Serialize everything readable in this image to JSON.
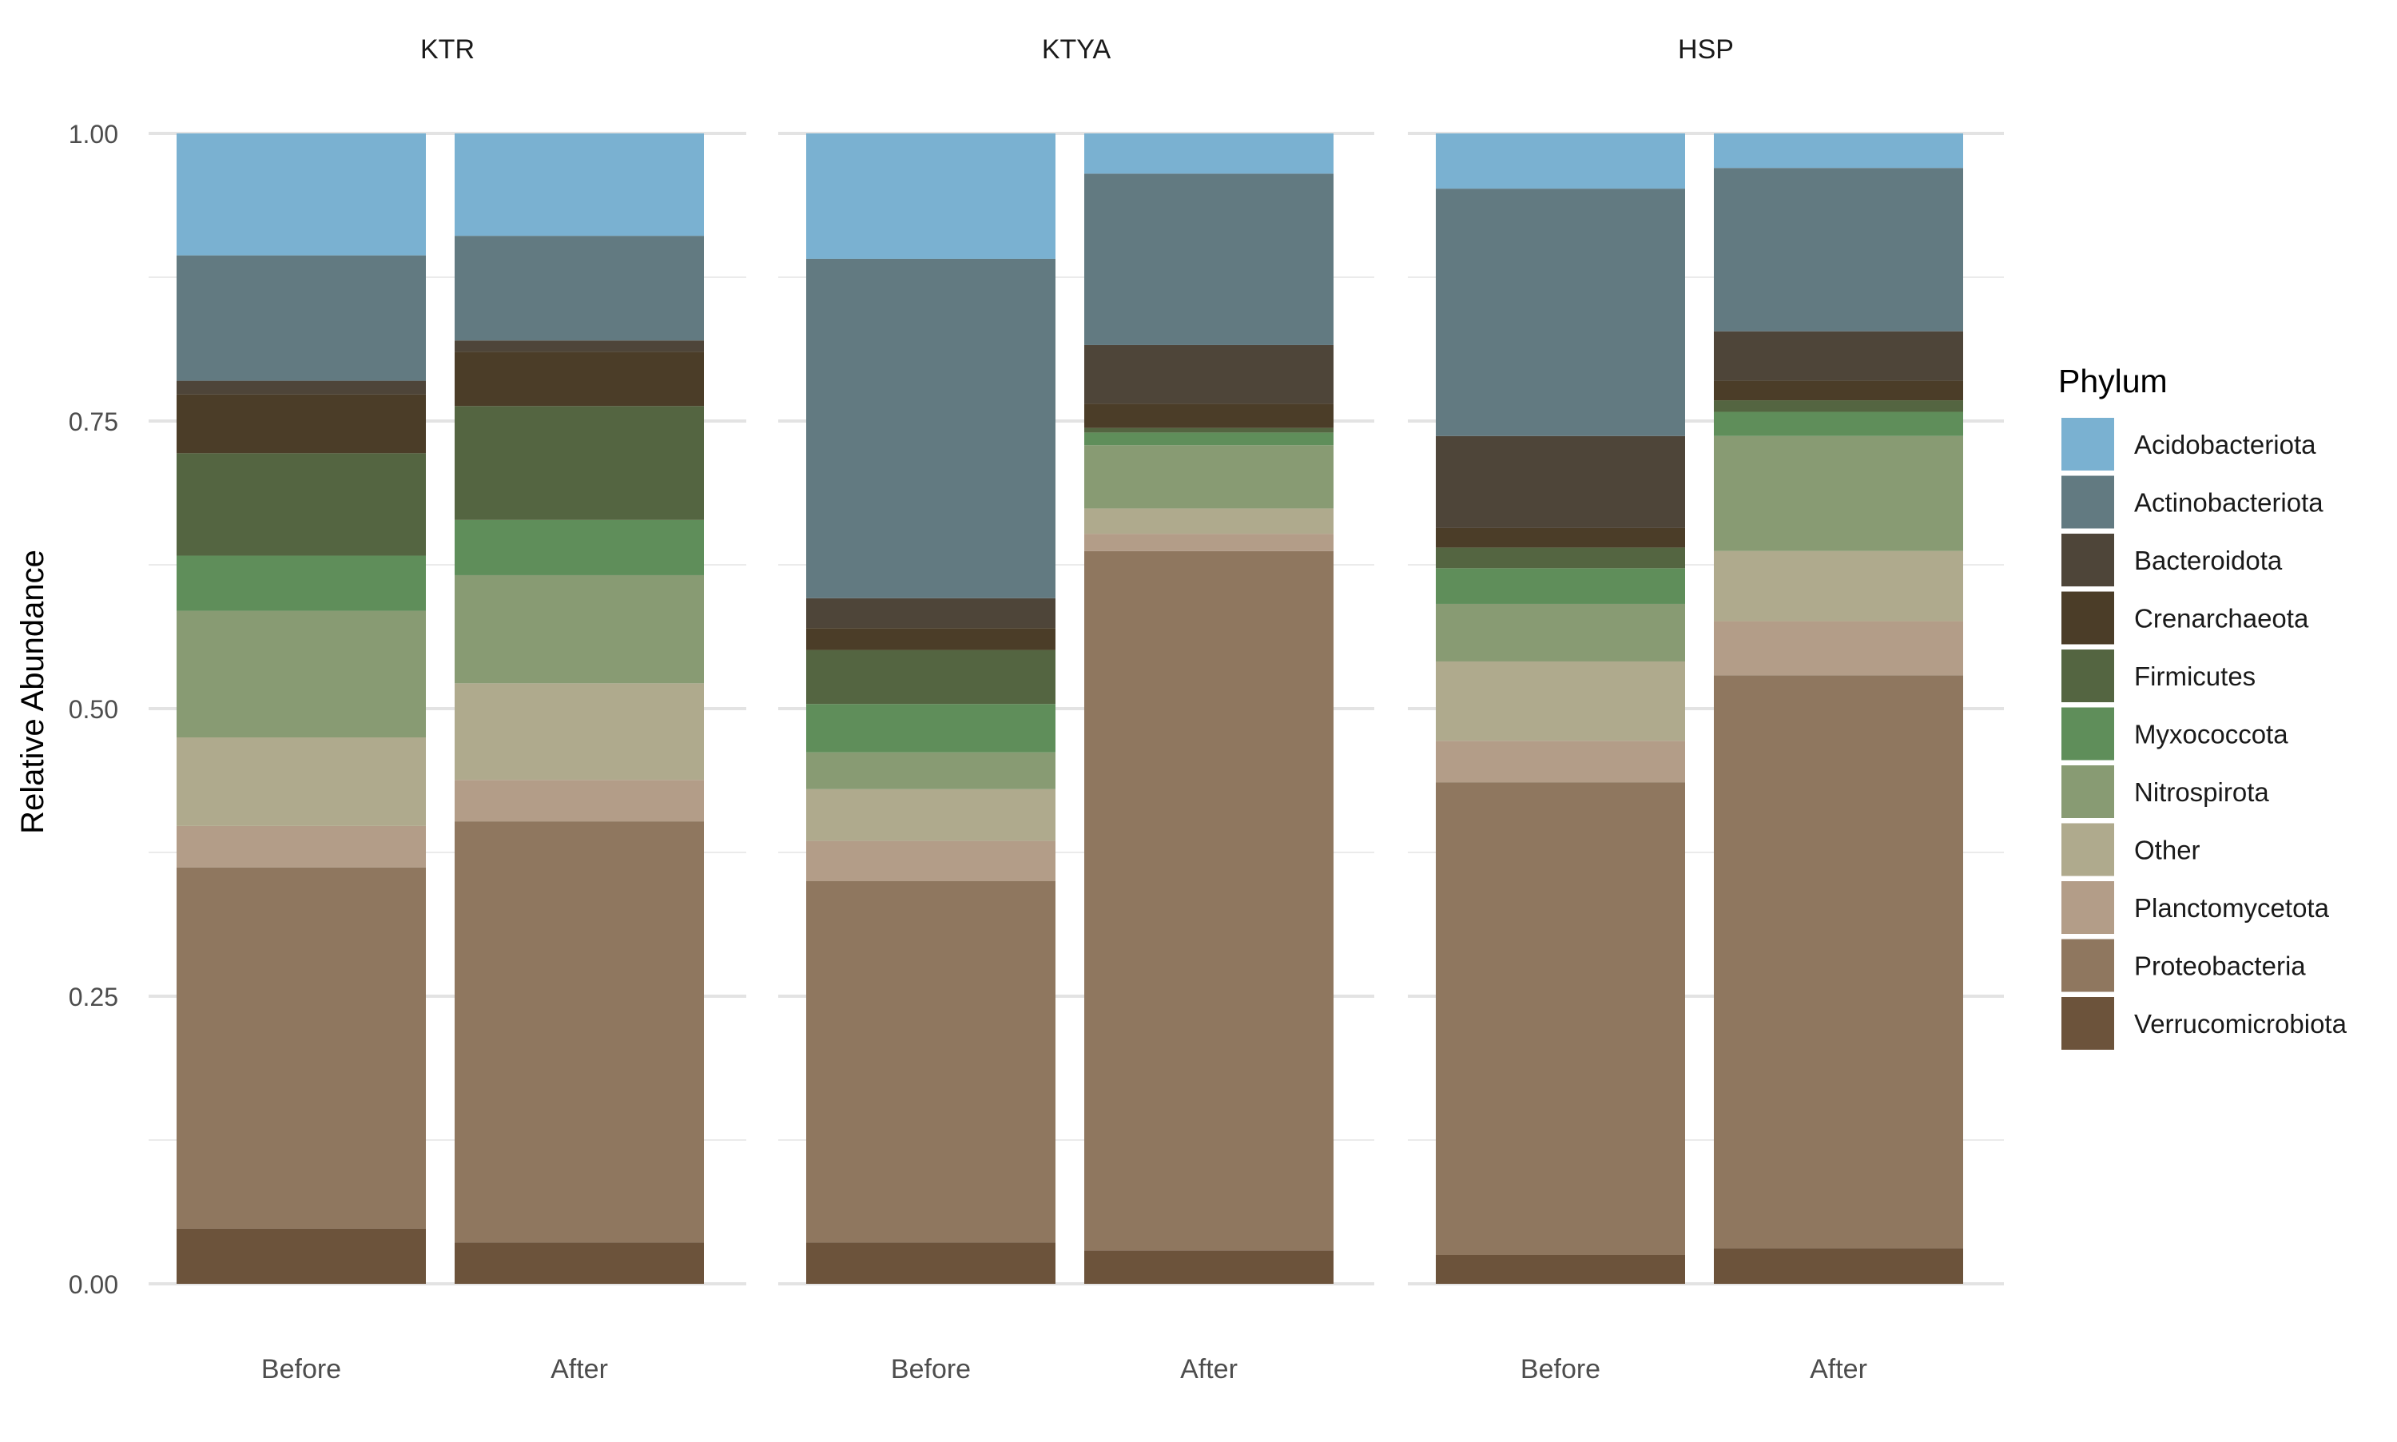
{
  "chart_data": {
    "type": "bar",
    "stacked": true,
    "ylabel": "Relative Abundance",
    "xlabel": "",
    "ylim": [
      0,
      1
    ],
    "yticks": [
      0,
      0.25,
      0.5,
      0.75,
      1
    ],
    "ytick_labels": [
      "0.00",
      "0.25",
      "0.50",
      "0.75",
      "1.00"
    ],
    "grid": true,
    "legend": {
      "title": "Phylum",
      "position": "right",
      "entries": [
        "Acidobacteriota",
        "Actinobacteriota",
        "Bacteroidota",
        "Crenarchaeota",
        "Firmicutes",
        "Myxococcota",
        "Nitrospirota",
        "Other",
        "Planctomycetota",
        "Proteobacteria",
        "Verrucomicrobiota"
      ]
    },
    "colors": {
      "Acidobacteriota": "#7AB1D1",
      "Actinobacteriota": "#627A81",
      "Bacteroidota": "#4E4539",
      "Crenarchaeota": "#4B3D28",
      "Firmicutes": "#546541",
      "Myxococcota": "#5F8E5A",
      "Nitrospirota": "#889B73",
      "Other": "#AFAA8D",
      "Planctomycetota": "#B39D88",
      "Proteobacteria": "#8F775F",
      "Verrucomicrobiota": "#6C533B"
    },
    "stack_order_bottom_to_top": [
      "Verrucomicrobiota",
      "Proteobacteria",
      "Planctomycetota",
      "Other",
      "Nitrospirota",
      "Myxococcota",
      "Firmicutes",
      "Crenarchaeota",
      "Bacteroidota",
      "Actinobacteriota",
      "Acidobacteriota"
    ],
    "categories": [
      "Before",
      "After"
    ],
    "panels": [
      {
        "title": "KTR",
        "bars": [
          {
            "category": "Before",
            "values": {
              "Verrucomicrobiota": 0.048,
              "Proteobacteria": 0.314,
              "Planctomycetota": 0.036,
              "Other": 0.077,
              "Nitrospirota": 0.11,
              "Myxococcota": 0.048,
              "Firmicutes": 0.089,
              "Crenarchaeota": 0.051,
              "Bacteroidota": 0.012,
              "Actinobacteriota": 0.109,
              "Acidobacteriota": 0.106
            }
          },
          {
            "category": "After",
            "values": {
              "Verrucomicrobiota": 0.036,
              "Proteobacteria": 0.366,
              "Planctomycetota": 0.036,
              "Other": 0.084,
              "Nitrospirota": 0.094,
              "Myxococcota": 0.048,
              "Firmicutes": 0.099,
              "Crenarchaeota": 0.047,
              "Bacteroidota": 0.01,
              "Actinobacteriota": 0.091,
              "Acidobacteriota": 0.089
            }
          }
        ]
      },
      {
        "title": "KTYA",
        "bars": [
          {
            "category": "Before",
            "values": {
              "Verrucomicrobiota": 0.036,
              "Proteobacteria": 0.314,
              "Planctomycetota": 0.035,
              "Other": 0.045,
              "Nitrospirota": 0.032,
              "Myxococcota": 0.042,
              "Firmicutes": 0.047,
              "Crenarchaeota": 0.019,
              "Bacteroidota": 0.026,
              "Actinobacteriota": 0.295,
              "Acidobacteriota": 0.109
            }
          },
          {
            "category": "After",
            "values": {
              "Verrucomicrobiota": 0.029,
              "Proteobacteria": 0.608,
              "Planctomycetota": 0.015,
              "Other": 0.022,
              "Nitrospirota": 0.055,
              "Myxococcota": 0.011,
              "Firmicutes": 0.004,
              "Crenarchaeota": 0.021,
              "Bacteroidota": 0.051,
              "Actinobacteriota": 0.149,
              "Acidobacteriota": 0.035
            }
          }
        ]
      },
      {
        "title": "HSP",
        "bars": [
          {
            "category": "Before",
            "values": {
              "Verrucomicrobiota": 0.025,
              "Proteobacteria": 0.411,
              "Planctomycetota": 0.036,
              "Other": 0.069,
              "Nitrospirota": 0.05,
              "Myxococcota": 0.031,
              "Firmicutes": 0.018,
              "Crenarchaeota": 0.017,
              "Bacteroidota": 0.08,
              "Actinobacteriota": 0.215,
              "Acidobacteriota": 0.048
            }
          },
          {
            "category": "After",
            "values": {
              "Verrucomicrobiota": 0.031,
              "Proteobacteria": 0.498,
              "Planctomycetota": 0.047,
              "Other": 0.061,
              "Nitrospirota": 0.1,
              "Myxococcota": 0.021,
              "Firmicutes": 0.01,
              "Crenarchaeota": 0.017,
              "Bacteroidota": 0.043,
              "Actinobacteriota": 0.142,
              "Acidobacteriota": 0.03
            }
          }
        ]
      }
    ]
  }
}
